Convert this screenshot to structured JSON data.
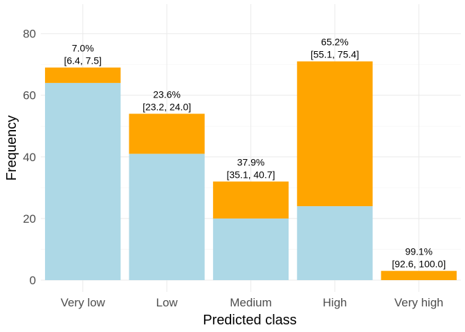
{
  "chart_data": {
    "type": "bar",
    "stacked": true,
    "categories": [
      "Very low",
      "Low",
      "Medium",
      "High",
      "Very high"
    ],
    "series": [
      {
        "color": "#add8e6",
        "values": [
          64,
          41,
          20,
          24,
          0
        ]
      },
      {
        "color": "#ffa500",
        "values": [
          5,
          13,
          12,
          47,
          3
        ]
      }
    ],
    "bar_labels": [
      {
        "pct": "7.0%",
        "ci": "[6.4, 7.5]"
      },
      {
        "pct": "23.6%",
        "ci": "[23.2, 24.0]"
      },
      {
        "pct": "37.9%",
        "ci": "[35.1, 40.7]"
      },
      {
        "pct": "65.2%",
        "ci": "[55.1, 75.4]"
      },
      {
        "pct": "99.1%",
        "ci": "[92.6, 100.0]"
      }
    ],
    "xlabel": "Predicted class",
    "ylabel": "Frequency",
    "ylim": [
      0,
      88
    ],
    "yticks": [
      0,
      20,
      40,
      60,
      80
    ],
    "grid": true,
    "legend": "none"
  }
}
